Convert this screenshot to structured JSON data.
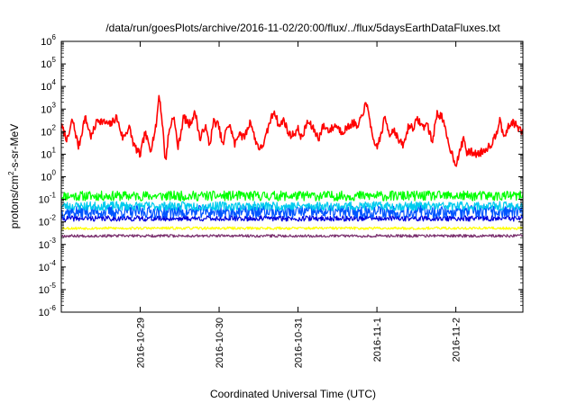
{
  "chart_data": {
    "type": "line",
    "title": "/data/run/goesPlots/archive/2016-11-02/20:00/flux/../flux/5daysEarthDataFluxes.txt",
    "xlabel": "Coordinated Universal Time (UTC)",
    "ylabel": {
      "prefix": "protons/cm",
      "sup": "2",
      "suffix": "-s-sr-MeV"
    },
    "yscale": "log",
    "ylim_exp": [
      -6,
      6
    ],
    "y_tick_exponents": [
      -6,
      -5,
      -4,
      -3,
      -2,
      -1,
      0,
      1,
      2,
      3,
      4,
      5,
      6
    ],
    "x_range_days": [
      0,
      5.85
    ],
    "x_ticks": [
      {
        "label": "2016-10-29",
        "day": 1.0
      },
      {
        "label": "2016-10-30",
        "day": 2.0
      },
      {
        "label": "2016-10-31",
        "day": 3.0
      },
      {
        "label": "2016-11-1",
        "day": 4.0
      },
      {
        "label": "2016-11-2",
        "day": 5.0
      }
    ],
    "grid": false,
    "legend": "none",
    "series": [
      {
        "color": "#ff0000",
        "style": "anchors",
        "noise": 0.18,
        "anchors": [
          [
            0.0,
            2.25
          ],
          [
            0.08,
            1.6
          ],
          [
            0.14,
            2.55
          ],
          [
            0.22,
            1.3
          ],
          [
            0.3,
            2.65
          ],
          [
            0.38,
            1.75
          ],
          [
            0.46,
            2.55
          ],
          [
            0.55,
            2.4
          ],
          [
            0.62,
            2.3
          ],
          [
            0.7,
            2.65
          ],
          [
            0.78,
            1.7
          ],
          [
            0.86,
            2.2
          ],
          [
            0.92,
            1.4
          ],
          [
            1.0,
            0.95
          ],
          [
            1.06,
            1.95
          ],
          [
            1.13,
            1.2
          ],
          [
            1.2,
            2.2
          ],
          [
            1.24,
            3.7
          ],
          [
            1.28,
            2.4
          ],
          [
            1.32,
            0.65
          ],
          [
            1.36,
            1.9
          ],
          [
            1.42,
            2.75
          ],
          [
            1.48,
            1.3
          ],
          [
            1.55,
            2.65
          ],
          [
            1.62,
            2.3
          ],
          [
            1.7,
            2.85
          ],
          [
            1.76,
            1.6
          ],
          [
            1.82,
            2.3
          ],
          [
            1.88,
            1.4
          ],
          [
            1.93,
            2.45
          ],
          [
            1.99,
            2.3
          ],
          [
            2.05,
            1.35
          ],
          [
            2.1,
            2.3
          ],
          [
            2.15,
            2.15
          ],
          [
            2.2,
            1.4
          ],
          [
            2.26,
            2.05
          ],
          [
            2.3,
            1.7
          ],
          [
            2.35,
            2.0
          ],
          [
            2.4,
            2.5
          ],
          [
            2.45,
            1.7
          ],
          [
            2.52,
            1.2
          ],
          [
            2.58,
            1.6
          ],
          [
            2.64,
            2.4
          ],
          [
            2.7,
            2.95
          ],
          [
            2.76,
            2.2
          ],
          [
            2.82,
            2.55
          ],
          [
            2.88,
            1.9
          ],
          [
            2.93,
            1.85
          ],
          [
            3.0,
            2.1
          ],
          [
            3.05,
            1.7
          ],
          [
            3.12,
            2.45
          ],
          [
            3.2,
            2.1
          ],
          [
            3.26,
            1.7
          ],
          [
            3.32,
            2.25
          ],
          [
            3.4,
            2.05
          ],
          [
            3.48,
            2.3
          ],
          [
            3.55,
            2.0
          ],
          [
            3.62,
            2.15
          ],
          [
            3.7,
            2.4
          ],
          [
            3.76,
            2.15
          ],
          [
            3.82,
            2.85
          ],
          [
            3.86,
            3.2
          ],
          [
            3.9,
            2.85
          ],
          [
            3.95,
            1.5
          ],
          [
            4.0,
            1.35
          ],
          [
            4.05,
            1.8
          ],
          [
            4.1,
            2.65
          ],
          [
            4.16,
            1.9
          ],
          [
            4.22,
            2.1
          ],
          [
            4.28,
            1.55
          ],
          [
            4.34,
            1.4
          ],
          [
            4.4,
            2.25
          ],
          [
            4.46,
            2.2
          ],
          [
            4.52,
            2.55
          ],
          [
            4.58,
            2.2
          ],
          [
            4.64,
            2.35
          ],
          [
            4.7,
            1.5
          ],
          [
            4.76,
            2.8
          ],
          [
            4.82,
            2.7
          ],
          [
            4.86,
            2.15
          ],
          [
            4.9,
            1.55
          ],
          [
            4.96,
            0.95
          ],
          [
            5.0,
            0.55
          ],
          [
            5.04,
            0.95
          ],
          [
            5.1,
            1.75
          ],
          [
            5.14,
            1.05
          ],
          [
            5.2,
            1.1
          ],
          [
            5.26,
            1.0
          ],
          [
            5.33,
            1.1
          ],
          [
            5.4,
            1.3
          ],
          [
            5.46,
            1.5
          ],
          [
            5.52,
            2.0
          ],
          [
            5.56,
            2.7
          ],
          [
            5.6,
            1.7
          ],
          [
            5.66,
            2.15
          ],
          [
            5.72,
            2.45
          ],
          [
            5.78,
            2.2
          ],
          [
            5.85,
            1.95
          ]
        ]
      },
      {
        "color": "#00ff00",
        "style": "noise",
        "base": -0.85,
        "noise": 0.22,
        "seed": 11
      },
      {
        "color": "#00ccee",
        "style": "noise",
        "base": -1.3,
        "noise": 0.2,
        "seed": 23
      },
      {
        "color": "#0055ff",
        "style": "noise",
        "base": -1.55,
        "noise": 0.28,
        "seed": 37
      },
      {
        "color": "#0000dd",
        "style": "noise",
        "base": -1.85,
        "noise": 0.12,
        "seed": 41
      },
      {
        "color": "#ffff00",
        "style": "noise",
        "base": -2.28,
        "noise": 0.06,
        "seed": 53
      },
      {
        "color": "#7a2f6e",
        "style": "noise",
        "base": -2.62,
        "noise": 0.06,
        "seed": 67
      }
    ]
  }
}
